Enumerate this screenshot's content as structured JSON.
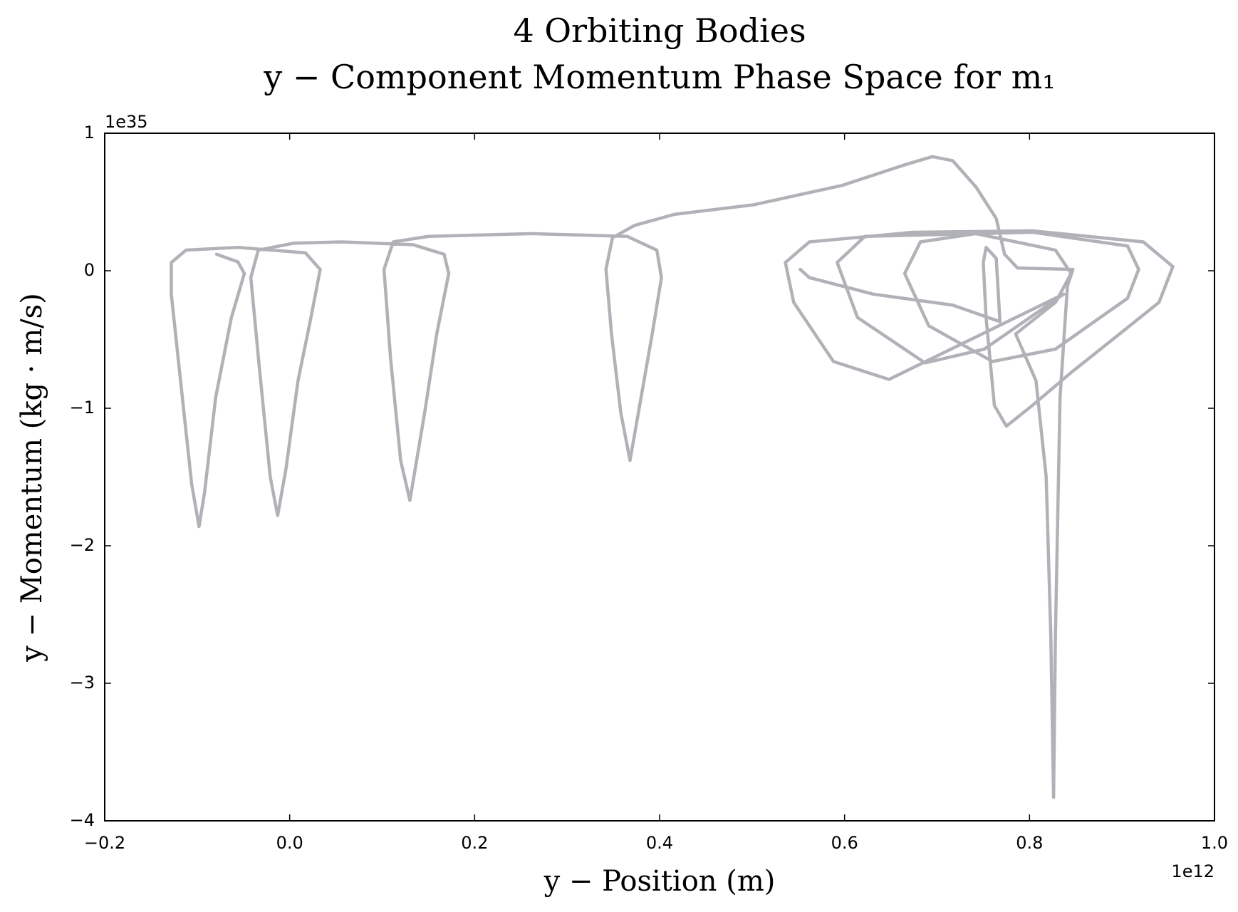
{
  "chart_data": {
    "type": "line",
    "title": "4 Orbiting Bodies",
    "subtitle": "y − Component Momentum Phase Space for m₁",
    "x_label": "y − Position (m)",
    "y_label": "y − Momentum (kg · m/s)",
    "x_offset": "1e12",
    "y_offset": "1e35",
    "color": "#b1b1b8",
    "grid": false,
    "xlim": [
      -0.2,
      1.0
    ],
    "ylim": [
      -4,
      1
    ],
    "xticks": [
      {
        "value": -0.2,
        "label": "−0.2"
      },
      {
        "value": 0,
        "label": "0.0"
      },
      0.2,
      0.4,
      0.6,
      0.8,
      {
        "value": 1.0,
        "label": "1.0"
      }
    ],
    "yticks": [
      {
        "value": -4,
        "label": "−4"
      },
      {
        "value": -3,
        "label": "−3"
      },
      {
        "value": -2,
        "label": "−2"
      },
      {
        "value": -1,
        "label": "−1"
      },
      0,
      1
    ],
    "x": [
      -0.079,
      -0.056,
      -0.049,
      -0.063,
      -0.08,
      -0.092,
      -0.098,
      -0.106,
      -0.118,
      -0.128,
      -0.128,
      -0.112,
      -0.056,
      0.017,
      0.033,
      0.023,
      0.009,
      -0.004,
      -0.013,
      -0.021,
      -0.033,
      -0.042,
      -0.034,
      0.004,
      0.056,
      0.133,
      0.167,
      0.172,
      0.159,
      0.146,
      0.13,
      0.12,
      0.109,
      0.102,
      0.112,
      0.15,
      0.262,
      0.365,
      0.397,
      0.402,
      0.392,
      0.38,
      0.368,
      0.358,
      0.348,
      0.342,
      0.349,
      0.373,
      0.416,
      0.502,
      0.597,
      0.665,
      0.695,
      0.717,
      0.742,
      0.764,
      0.773,
      0.787,
      0.847,
      0.841,
      0.833,
      0.828,
      0.826,
      0.823,
      0.818,
      0.807,
      0.785,
      0.828,
      0.845,
      0.828,
      0.742,
      0.682,
      0.665,
      0.691,
      0.76,
      0.828,
      0.906,
      0.918,
      0.906,
      0.803,
      0.622,
      0.592,
      0.614,
      0.687,
      0.751,
      0.837,
      0.648,
      0.588,
      0.545,
      0.536,
      0.562,
      0.674,
      0.803,
      0.923,
      0.955,
      0.94,
      0.888,
      0.845,
      0.803,
      0.775,
      0.762,
      0.753,
      0.75,
      0.753,
      0.764,
      0.768,
      0.717,
      0.631,
      0.562,
      0.552
    ],
    "values": [
      0.12,
      0.065,
      -0.02,
      -0.34,
      -0.92,
      -1.61,
      -1.86,
      -1.55,
      -0.8,
      -0.17,
      0.06,
      0.15,
      0.17,
      0.13,
      0.01,
      -0.34,
      -0.8,
      -1.44,
      -1.78,
      -1.5,
      -0.69,
      -0.05,
      0.15,
      0.2,
      0.21,
      0.19,
      0.12,
      -0.02,
      -0.46,
      -1.03,
      -1.67,
      -1.38,
      -0.63,
      0.01,
      0.21,
      0.25,
      0.27,
      0.25,
      0.15,
      -0.05,
      -0.46,
      -0.92,
      -1.38,
      -1.03,
      -0.46,
      0.01,
      0.24,
      0.33,
      0.41,
      0.48,
      0.62,
      0.77,
      0.83,
      0.8,
      0.61,
      0.38,
      0.12,
      0.02,
      0.01,
      -0.11,
      -0.92,
      -2.65,
      -3.83,
      -2.65,
      -1.5,
      -0.8,
      -0.46,
      -0.23,
      -0.02,
      0.15,
      0.27,
      0.21,
      -0.02,
      -0.4,
      -0.66,
      -0.57,
      -0.2,
      0.01,
      0.18,
      0.28,
      0.25,
      0.06,
      -0.34,
      -0.67,
      -0.57,
      -0.17,
      -0.79,
      -0.66,
      -0.23,
      0.06,
      0.21,
      0.28,
      0.29,
      0.21,
      0.03,
      -0.23,
      -0.51,
      -0.74,
      -0.98,
      -1.13,
      -0.98,
      -0.34,
      0.06,
      0.17,
      0.09,
      -0.37,
      -0.25,
      -0.17,
      -0.05,
      0.01
    ]
  }
}
